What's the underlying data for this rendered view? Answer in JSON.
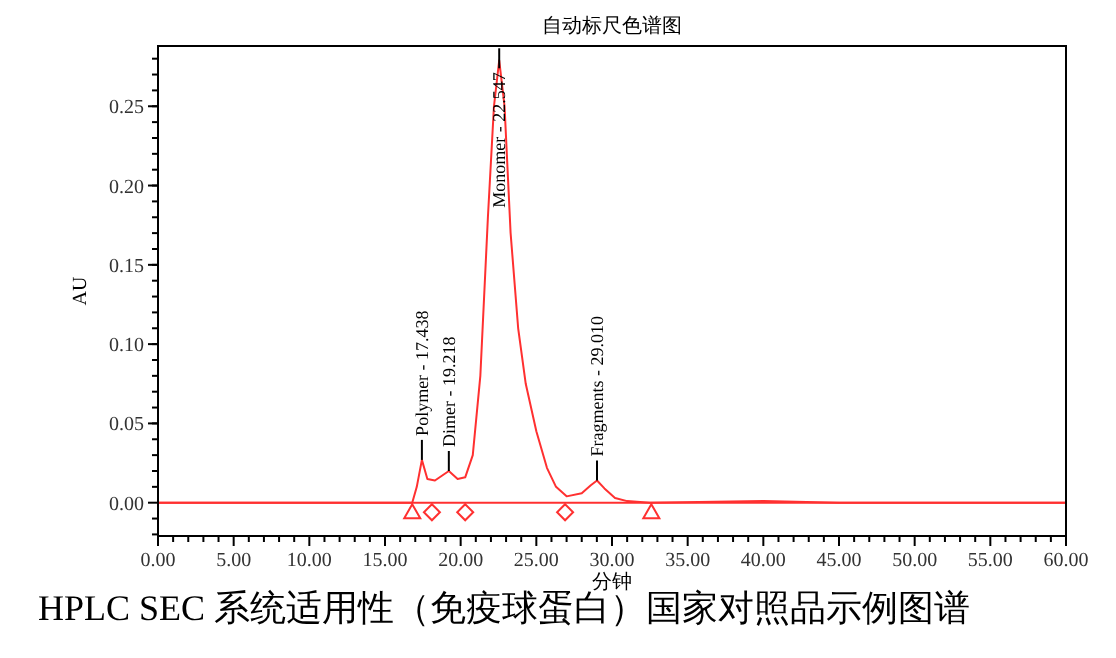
{
  "chart_data": {
    "type": "line",
    "title": "自动标尺色谱图",
    "xlabel": "分钟",
    "ylabel": "AU",
    "x": [
      0,
      10,
      16.8,
      17.1,
      17.438,
      17.8,
      18.3,
      19.218,
      19.8,
      20.3,
      20.8,
      21.3,
      21.8,
      22.2,
      22.547,
      22.9,
      23.3,
      23.8,
      24.3,
      25,
      25.7,
      26.3,
      27,
      28,
      28.6,
      29.01,
      29.5,
      30.2,
      31,
      32.5,
      40,
      45,
      60
    ],
    "series": [
      {
        "color": "#ff3030",
        "values": [
          0,
          0,
          0,
          0.01,
          0.027,
          0.015,
          0.014,
          0.02,
          0.015,
          0.016,
          0.03,
          0.08,
          0.18,
          0.25,
          0.279,
          0.25,
          0.17,
          0.11,
          0.075,
          0.045,
          0.022,
          0.01,
          0.004,
          0.006,
          0.011,
          0.014,
          0.009,
          0.003,
          0.001,
          0,
          0.001,
          0,
          0
        ]
      },
      {
        "type": "scatter",
        "marker": "triangle",
        "color": "#ff3030",
        "x": [
          16.8,
          32.6
        ],
        "values": [
          -0.006,
          -0.006
        ]
      },
      {
        "type": "scatter",
        "marker": "diamond",
        "color": "#ff3030",
        "x": [
          18.1,
          20.3,
          26.9
        ],
        "values": [
          -0.006,
          -0.006,
          -0.006
        ]
      }
    ],
    "ref_lines": [
      {
        "axis": "y",
        "value": 0,
        "color": "#ff3030"
      }
    ],
    "annotations": [
      {
        "text": "Polymer - 17.438",
        "x": 17.438,
        "y": 0.027
      },
      {
        "text": "Dimer - 19.218",
        "x": 19.218,
        "y": 0.02
      },
      {
        "text": "Monomer - 22.547",
        "x": 22.547,
        "y": 0.279
      },
      {
        "text": "Fragments - 29.010",
        "x": 29.01,
        "y": 0.014
      },
      "HPLC SEC 系统适用性（免疫球蛋白）国家对照品示例图谱"
    ],
    "xlim": [
      0,
      60
    ],
    "ylim": [
      -0.021,
      0.288
    ],
    "xticks": [
      {
        "value": 0,
        "label": "0.00"
      },
      {
        "value": 5,
        "label": "5.00"
      },
      {
        "value": 10,
        "label": "10.00"
      },
      {
        "value": 15,
        "label": "15.00"
      },
      {
        "value": 20,
        "label": "20.00"
      },
      {
        "value": 25,
        "label": "25.00"
      },
      {
        "value": 30,
        "label": "30.00"
      },
      {
        "value": 35,
        "label": "35.00"
      },
      {
        "value": 40,
        "label": "40.00"
      },
      {
        "value": 45,
        "label": "45.00"
      },
      {
        "value": 50,
        "label": "50.00"
      },
      {
        "value": 55,
        "label": "55.00"
      },
      {
        "value": 60,
        "label": "60.00"
      }
    ],
    "yticks": [
      {
        "value": 0,
        "label": "0.00"
      },
      {
        "value": 0.05,
        "label": "0.05"
      },
      {
        "value": 0.1,
        "label": "0.10"
      },
      {
        "value": 0.15,
        "label": "0.15"
      },
      {
        "value": 0.2,
        "label": "0.20"
      },
      {
        "value": 0.25,
        "label": "0.25"
      }
    ],
    "grid": false,
    "line_style": "solid"
  }
}
